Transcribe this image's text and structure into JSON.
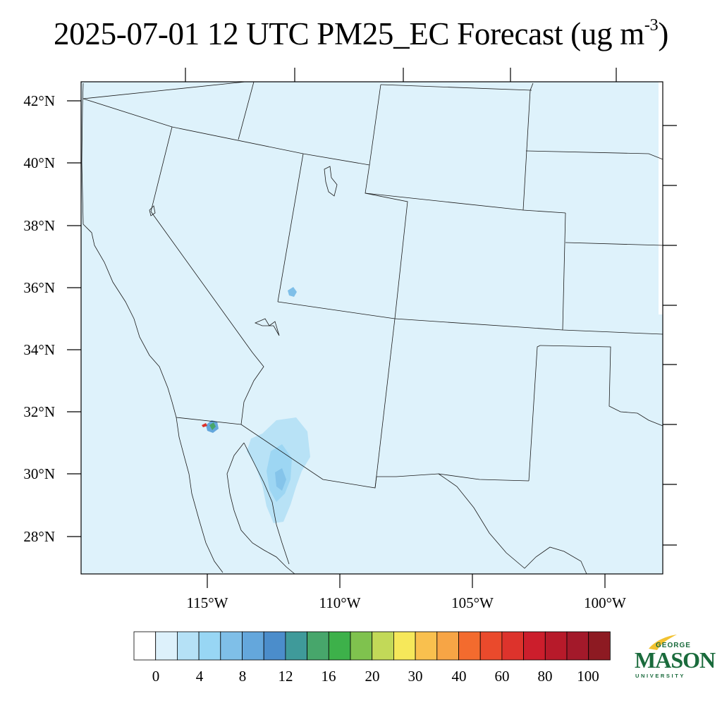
{
  "title": {
    "text": "2025-07-01 12 UTC PM25_EC Forecast (ug m",
    "superscript": "-3",
    "suffix": ")"
  },
  "map": {
    "background_color": "#def2fb",
    "lat_labels": [
      "42°N",
      "40°N",
      "38°N",
      "36°N",
      "34°N",
      "32°N",
      "30°N",
      "28°N"
    ],
    "lon_labels": [
      "115°W",
      "110°W",
      "105°W",
      "100°W"
    ],
    "lat_values": [
      42,
      40,
      38,
      36,
      34,
      32,
      30,
      28
    ],
    "lon_values": [
      -115,
      -110,
      -105,
      -100
    ]
  },
  "colorbar": {
    "labels": [
      "0",
      "4",
      "8",
      "12",
      "16",
      "20",
      "30",
      "40",
      "60",
      "80",
      "100"
    ],
    "colors": [
      "#ffffff",
      "#ddf1fb",
      "#b5e1f6",
      "#98d6f4",
      "#7fbfe8",
      "#64a7dc",
      "#4b8dcb",
      "#3f9a9a",
      "#47a66b",
      "#3db14a",
      "#7fc24e",
      "#c2d958",
      "#f6e85a",
      "#f9c04e",
      "#f7a545",
      "#f36b2e",
      "#ea4a2c",
      "#dd332c",
      "#cc1e2c",
      "#b71a2a",
      "#a3192a",
      "#8d1a22"
    ]
  },
  "logo": {
    "line1": "GEORGE",
    "line2": "MASON",
    "line3": "UNIVERSITY"
  }
}
